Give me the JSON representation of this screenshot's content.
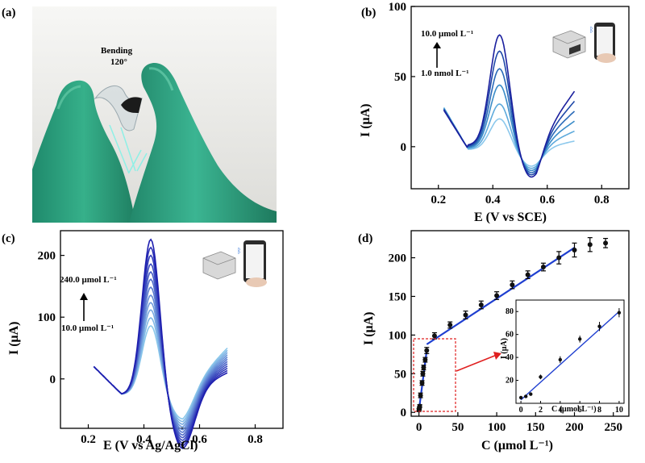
{
  "panels": {
    "a": {
      "label": "(a)",
      "annotation_line1": "Bending",
      "annotation_line2": "120°"
    },
    "b": {
      "label": "(b)",
      "xlabel": "E  (V vs SCE)",
      "ylabel": "I (μA)",
      "conc_high": "10.0 μmol L⁻¹",
      "conc_low": "1.0 nmol L⁻¹"
    },
    "c": {
      "label": "(c)",
      "xlabel": "E (V vs Ag/AgCl)",
      "ylabel": "I (μA)",
      "conc_high": "240.0 μmol L⁻¹",
      "conc_low": "10.0 μmol L⁻¹"
    },
    "d": {
      "label": "(d)",
      "xlabel": "C (μmol L⁻¹)",
      "ylabel": "I (μA)",
      "inset_xlabel": "C (μmol L⁻¹)",
      "inset_ylabel": "I (μA)"
    }
  },
  "colors": {
    "glove": "#2fa482",
    "dark_blue": "#1a1f9e",
    "fit_line": "#1f3fd0",
    "box": "#e02020"
  },
  "chart_data": [
    {
      "id": "b",
      "type": "line",
      "xlim": [
        0.1,
        0.9
      ],
      "ylim": [
        -30,
        100
      ],
      "xticks": [
        0.2,
        0.4,
        0.6,
        0.8
      ],
      "yticks": [
        0,
        50,
        100
      ],
      "series_count": 6,
      "series_peaks": [
        22,
        32,
        45,
        56,
        68,
        79
      ],
      "series_colors": [
        "#8cc8ec",
        "#5eaadc",
        "#3a8cc8",
        "#2a6ab8",
        "#1f48a8",
        "#1a1f9e"
      ]
    },
    {
      "id": "c",
      "type": "line",
      "xlim": [
        0.1,
        0.9
      ],
      "ylim": [
        -80,
        240
      ],
      "xticks": [
        0.2,
        0.4,
        0.6,
        0.8
      ],
      "yticks": [
        0,
        100,
        200
      ],
      "series_count": 12,
      "series_peaks": [
        92,
        105,
        118,
        130,
        142,
        155,
        168,
        180,
        193,
        207,
        220,
        233
      ]
    },
    {
      "id": "d",
      "type": "scatter",
      "xlim": [
        -10,
        270
      ],
      "ylim": [
        -5,
        235
      ],
      "xticks": [
        0,
        50,
        100,
        150,
        200,
        250
      ],
      "yticks": [
        0,
        50,
        100,
        150,
        200
      ],
      "x": [
        0,
        0.5,
        1,
        2,
        4,
        5,
        6,
        8,
        10,
        20,
        40,
        60,
        80,
        100,
        120,
        140,
        160,
        180,
        200,
        220,
        240
      ],
      "y": [
        3,
        5,
        8,
        22,
        38,
        50,
        58,
        68,
        80,
        99,
        113,
        126,
        139,
        151,
        165,
        178,
        188,
        200,
        210,
        217,
        219
      ],
      "err": [
        2,
        2,
        2,
        3,
        3,
        3,
        3,
        3,
        4,
        4,
        4,
        5,
        5,
        5,
        5,
        5,
        5,
        8,
        9,
        9,
        6
      ],
      "inset": {
        "xlim": [
          -0.5,
          10.5
        ],
        "ylim": [
          0,
          90
        ],
        "xticks": [
          0,
          2,
          4,
          6,
          8,
          10
        ],
        "yticks": [
          20,
          40,
          60,
          80
        ],
        "x": [
          0,
          0.5,
          1,
          2,
          4,
          6,
          8,
          10
        ],
        "y": [
          5,
          6,
          8,
          23,
          38,
          56,
          67,
          79
        ],
        "err": [
          1,
          1,
          1,
          2,
          3,
          3,
          4,
          4
        ]
      }
    }
  ]
}
